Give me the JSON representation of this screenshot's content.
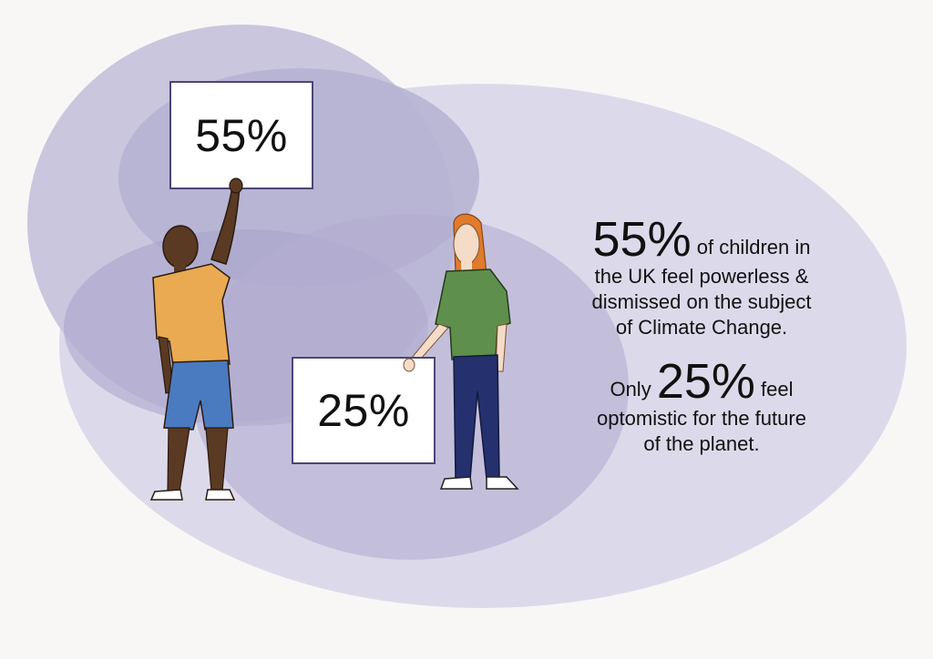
{
  "colors": {
    "background": "#f8f7f6",
    "blob": "#dcdaea",
    "blob_shadow": "#a09bc4",
    "sign_border": "#4a4676"
  },
  "sign_left": "55%",
  "sign_right": "25%",
  "stat1": {
    "big": "55%",
    "text_line1": "of children in",
    "line2": "the UK feel powerless &",
    "line3": "dismissed on the subject",
    "line4": "of Climate Change."
  },
  "stat2": {
    "prefix": "Only",
    "big": "25%",
    "suffix": "feel",
    "line2": "optomistic for the future",
    "line3": "of the planet."
  }
}
